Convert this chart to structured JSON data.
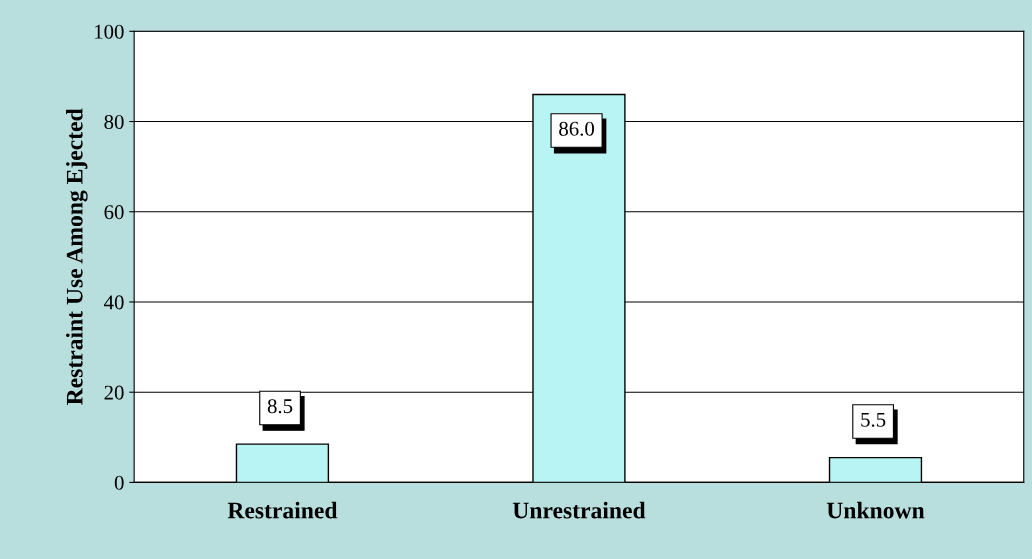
{
  "chart_data": {
    "type": "bar",
    "ylabel": "Restraint Use Among Ejected",
    "categories": [
      "Restrained",
      "Unrestrained",
      "Unknown"
    ],
    "values": [
      8.5,
      86.0,
      5.5
    ],
    "value_labels": [
      "8.5",
      "86.0",
      "5.5"
    ],
    "color": "#b8f4f4",
    "ylim": [
      0,
      100
    ],
    "yticks": [
      0,
      20,
      40,
      60,
      80,
      100
    ],
    "grid": "y",
    "legend": false
  }
}
